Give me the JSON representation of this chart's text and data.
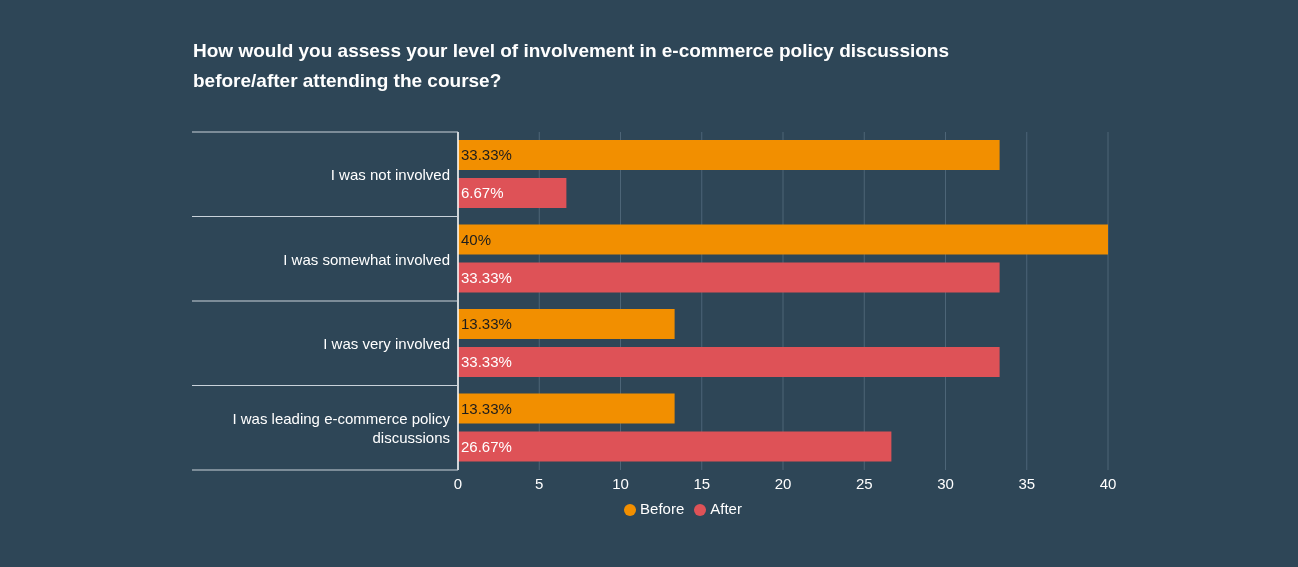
{
  "chart_data": {
    "type": "bar",
    "orientation": "horizontal",
    "title": "How would you assess your level of involvement in e-commerce policy discussions before/after attending the course?",
    "categories": [
      "I was not involved",
      "I was somewhat involved",
      "I was very involved",
      "I was leading e-commerce policy discussions"
    ],
    "series": [
      {
        "name": "Before",
        "color": "#f28f00",
        "values": [
          33.33,
          40,
          13.33,
          13.33
        ],
        "value_labels": [
          "33.33%",
          "40%",
          "13.33%",
          "13.33%"
        ]
      },
      {
        "name": "After",
        "color": "#de5257",
        "values": [
          6.67,
          33.33,
          33.33,
          26.67
        ],
        "value_labels": [
          "6.67%",
          "33.33%",
          "33.33%",
          "26.67%"
        ]
      }
    ],
    "xlim": [
      0,
      40
    ],
    "xticks": [
      0,
      5,
      10,
      15,
      20,
      25,
      30,
      35,
      40
    ],
    "grid": "x",
    "legend": "bottom"
  }
}
